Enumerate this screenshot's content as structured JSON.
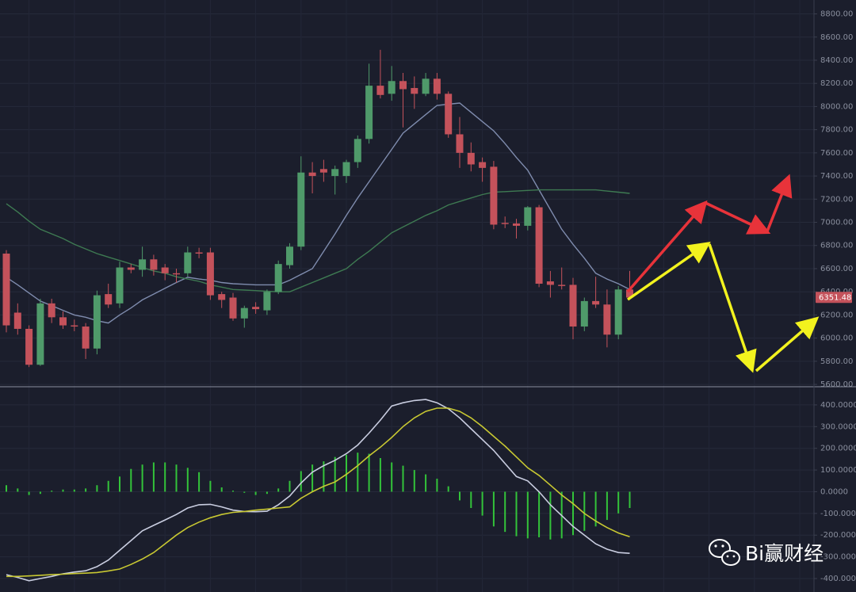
{
  "chart_data": [
    {
      "type": "candlestick",
      "up_color": "#4f9a6a",
      "down_color": "#c4525b",
      "open": [
        6730,
        6220,
        6080,
        5770,
        6300,
        6180,
        6110,
        6100,
        5910,
        6380,
        6300,
        6610,
        6590,
        6680,
        6610,
        6560,
        6560,
        6740,
        6740,
        6380,
        6350,
        6170,
        6270,
        6240,
        6400,
        6630,
        6790,
        7430,
        7460,
        7400,
        7400,
        7520,
        7720,
        8180,
        8110,
        8220,
        8160,
        8110,
        8240,
        8110,
        7760,
        7600,
        7520,
        7480,
        6995,
        6990,
        6970,
        7130,
        6490,
        6460,
        6460,
        6100,
        6320,
        6290,
        6030,
        6420
      ],
      "high": [
        6760,
        6300,
        6110,
        6340,
        6340,
        6230,
        6160,
        6130,
        6410,
        6470,
        6660,
        6640,
        6790,
        6720,
        6640,
        6600,
        6790,
        6780,
        6780,
        6400,
        6390,
        6280,
        6310,
        6420,
        6670,
        6820,
        7570,
        7520,
        7540,
        7490,
        7540,
        7750,
        8370,
        8490,
        8350,
        8290,
        8260,
        8290,
        8290,
        8130,
        7910,
        7690,
        7560,
        7530,
        7050,
        7030,
        7140,
        7150,
        6580,
        6610,
        6520,
        6350,
        6530,
        6420,
        6450,
        6580
      ],
      "low": [
        6050,
        6030,
        5750,
        5760,
        6130,
        6080,
        6060,
        5820,
        5860,
        6260,
        6260,
        6560,
        6530,
        6540,
        6500,
        6480,
        6530,
        6690,
        6330,
        6260,
        6150,
        6090,
        6210,
        6200,
        6380,
        6600,
        6760,
        7250,
        7350,
        7240,
        7340,
        7470,
        7680,
        8070,
        8050,
        7820,
        7980,
        8090,
        8060,
        7730,
        7470,
        7440,
        7350,
        6940,
        6950,
        6860,
        6930,
        6440,
        6350,
        6420,
        5990,
        6060,
        6260,
        5920,
        5990,
        6330
      ],
      "close": [
        6110,
        6080,
        5770,
        6300,
        6180,
        6110,
        6100,
        5910,
        6370,
        6290,
        6610,
        6590,
        6680,
        6590,
        6560,
        6550,
        6740,
        6730,
        6370,
        6330,
        6170,
        6260,
        6250,
        6400,
        6640,
        6790,
        7430,
        7400,
        7430,
        7460,
        7520,
        7720,
        8180,
        8100,
        8220,
        8150,
        8110,
        8240,
        8110,
        7760,
        7600,
        7500,
        7470,
        6980,
        6985,
        6970,
        7130,
        6470,
        6460,
        6450,
        6100,
        6320,
        6290,
        6030,
        6420,
        6350
      ],
      "lines": [
        {
          "color": "#7f8cae",
          "values": [
            6525,
            6460,
            6390,
            6320,
            6280,
            6240,
            6200,
            6180,
            6150,
            6130,
            6200,
            6260,
            6330,
            6380,
            6430,
            6480,
            6525,
            6510,
            6500,
            6480,
            6470,
            6465,
            6460,
            6460,
            6460,
            6500,
            6550,
            6600,
            6750,
            6900,
            7060,
            7210,
            7350,
            7490,
            7630,
            7770,
            7850,
            7930,
            8010,
            8020,
            8030,
            7950,
            7870,
            7790,
            7680,
            7560,
            7450,
            7280,
            7110,
            6940,
            6810,
            6690,
            6560,
            6510,
            6470,
            6420
          ]
        },
        {
          "color": "#3e7a52",
          "values": [
            7160,
            7090,
            7010,
            6940,
            6900,
            6860,
            6810,
            6770,
            6730,
            6700,
            6670,
            6640,
            6610,
            6580,
            6560,
            6530,
            6510,
            6490,
            6460,
            6440,
            6420,
            6415,
            6410,
            6405,
            6400,
            6400,
            6440,
            6480,
            6520,
            6560,
            6600,
            6680,
            6750,
            6830,
            6910,
            6960,
            7010,
            7060,
            7100,
            7150,
            7180,
            7210,
            7240,
            7260,
            7265,
            7270,
            7275,
            7280,
            7280,
            7280,
            7280,
            7280,
            7280,
            7270,
            7260,
            7250
          ]
        }
      ],
      "last_price": 6351.48,
      "ylim": [
        5580,
        8920
      ],
      "yticks": [
        {
          "value": 5600,
          "label": "5600.00"
        },
        {
          "value": 5800,
          "label": "5800.00"
        },
        {
          "value": 6000,
          "label": "6000.00"
        },
        {
          "value": 6200,
          "label": "6200.00"
        },
        {
          "value": 6400,
          "label": "6400.00"
        },
        {
          "value": 6600,
          "label": "6600.00"
        },
        {
          "value": 6800,
          "label": "6800.00"
        },
        {
          "value": 7000,
          "label": "7000.00"
        },
        {
          "value": 7200,
          "label": "7200.00"
        },
        {
          "value": 7400,
          "label": "7400.00"
        },
        {
          "value": 7600,
          "label": "7600.00"
        },
        {
          "value": 7800,
          "label": "7800.00"
        },
        {
          "value": 8000,
          "label": "8000.00"
        },
        {
          "value": 8200,
          "label": "8200.00"
        },
        {
          "value": 8400,
          "label": "8400.00"
        },
        {
          "value": 8600,
          "label": "8600.00"
        },
        {
          "value": 8800,
          "label": "8800.00"
        }
      ],
      "grid": true
    },
    {
      "type": "macd",
      "histogram_color": "#33c33a",
      "histogram": [
        30,
        15,
        -15,
        -10,
        5,
        10,
        10,
        15,
        30,
        50,
        70,
        105,
        125,
        135,
        135,
        125,
        110,
        90,
        50,
        20,
        5,
        -5,
        -15,
        -10,
        15,
        50,
        95,
        125,
        140,
        160,
        170,
        180,
        175,
        155,
        135,
        120,
        100,
        80,
        60,
        25,
        -40,
        -75,
        -110,
        -160,
        -185,
        -205,
        -215,
        -210,
        -220,
        -215,
        -200,
        -180,
        -160,
        -130,
        -100,
        -75
      ],
      "lines": [
        {
          "color": "#c9cde0",
          "values": [
            -382,
            -395,
            -410,
            -400,
            -390,
            -378,
            -370,
            -364,
            -345,
            -315,
            -270,
            -225,
            -180,
            -155,
            -130,
            -105,
            -75,
            -60,
            -58,
            -70,
            -85,
            -91,
            -92,
            -90,
            -60,
            -20,
            40,
            90,
            120,
            145,
            175,
            215,
            270,
            330,
            395,
            410,
            420,
            425,
            410,
            382,
            340,
            290,
            240,
            190,
            130,
            70,
            50,
            0,
            -60,
            -110,
            -160,
            -200,
            -240,
            -265,
            -280,
            -284
          ]
        },
        {
          "color": "#c8c832",
          "values": [
            -390,
            -390,
            -388,
            -385,
            -382,
            -380,
            -377,
            -375,
            -372,
            -365,
            -356,
            -335,
            -310,
            -280,
            -240,
            -200,
            -165,
            -140,
            -120,
            -105,
            -95,
            -91,
            -85,
            -80,
            -75,
            -70,
            -30,
            0,
            25,
            45,
            80,
            120,
            165,
            205,
            250,
            300,
            340,
            370,
            385,
            385,
            370,
            340,
            300,
            255,
            210,
            160,
            110,
            75,
            30,
            -15,
            -55,
            -100,
            -135,
            -165,
            -190,
            -207
          ]
        }
      ],
      "ylim": [
        -462,
        480
      ],
      "yticks": [
        {
          "value": 400,
          "label": "400.0000"
        },
        {
          "value": 300,
          "label": "300.0000"
        },
        {
          "value": 200,
          "label": "200.0000"
        },
        {
          "value": 100,
          "label": "100.0000"
        },
        {
          "value": 0,
          "label": "0.0000"
        },
        {
          "value": -100,
          "label": "-100.0000"
        },
        {
          "value": -200,
          "label": "-200.0000"
        },
        {
          "value": -300,
          "label": "-300.0000"
        },
        {
          "value": -400,
          "label": "-400.0000"
        }
      ],
      "grid": true
    }
  ],
  "watermark": "Bi赢财经"
}
